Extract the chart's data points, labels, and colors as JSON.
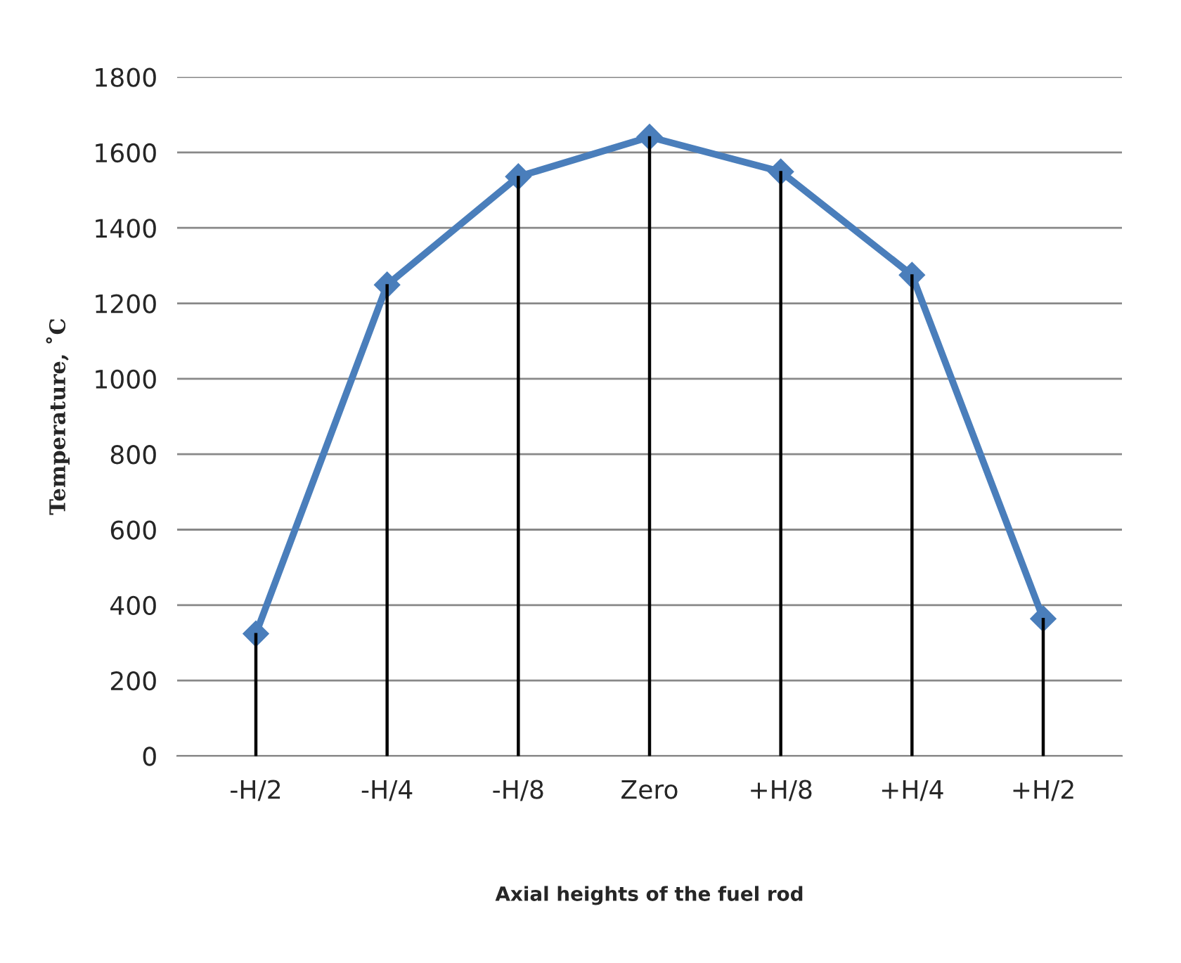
{
  "chart_data": {
    "type": "line",
    "xlabel": "Axial heights of the fuel rod",
    "ylabel": "Temperature, ˚C",
    "categories": [
      "-H/2",
      "-H/4",
      "-H/8",
      "Zero",
      "+H/8",
      "+H/4",
      "+H/2"
    ],
    "series": [
      {
        "type": "bar",
        "color": "#000000",
        "values": [
          324,
          1249,
          1536,
          1641,
          1549,
          1275,
          364
        ]
      },
      {
        "color": "#4a7ebb",
        "values": [
          324,
          1249,
          1536,
          1641,
          1549,
          1275,
          364
        ]
      }
    ],
    "ylim": [
      0,
      1800
    ],
    "yticks": [
      0,
      200,
      400,
      600,
      800,
      1000,
      1200,
      1400,
      1600,
      1800
    ],
    "grid": "y",
    "marker": "diamond",
    "line_style": "solid",
    "legend": false
  }
}
